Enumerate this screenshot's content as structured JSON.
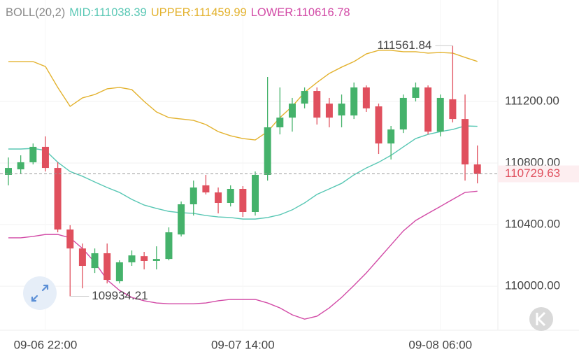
{
  "chart_data": {
    "type": "candlestick",
    "indicator": "BOLL(20,2)",
    "categories": [
      null,
      null,
      null,
      "09-06 22:00",
      null,
      null,
      null,
      null,
      null,
      null,
      null,
      null,
      null,
      null,
      null,
      null,
      null,
      null,
      null,
      "09-07 14:00",
      null,
      null,
      null,
      null,
      null,
      null,
      null,
      null,
      null,
      null,
      null,
      null,
      null,
      null,
      null,
      "09-08 06:00",
      null,
      null,
      null
    ],
    "open": [
      110723,
      110759,
      110805,
      110905,
      110768,
      110368,
      110245,
      110118,
      110214,
      110032,
      110155,
      110195,
      110164,
      110177,
      110336,
      110532,
      110655,
      110609,
      110541,
      110632,
      110482,
      110723,
      111032,
      111095,
      111186,
      111268,
      111186,
      111109,
      111109,
      111291,
      111168,
      110927,
      111018,
      111223,
      111291,
      111004,
      111214,
      111086,
      110791
    ],
    "high": [
      110836,
      110850,
      110927,
      110973,
      110805,
      110396,
      110277,
      110245,
      110277,
      110168,
      110232,
      110223,
      110259,
      110382,
      110550,
      110686,
      110723,
      110641,
      110655,
      110650,
      110745,
      111359,
      111291,
      111223,
      111291,
      111291,
      111223,
      111245,
      111323,
      111304,
      111186,
      111041,
      111245,
      111323,
      111304,
      111245,
      111561.84,
      111245,
      110914
    ],
    "low": [
      110655,
      110732,
      110791,
      110745,
      110350,
      109934.21,
      109986,
      110086,
      110018,
      110018,
      110132,
      110109,
      110109,
      110168,
      110323,
      110459,
      110596,
      110473,
      110518,
      110450,
      110459,
      110686,
      110986,
      111004,
      111155,
      111050,
      111032,
      111032,
      111086,
      111132,
      110859,
      110823,
      110995,
      111200,
      110986,
      110973,
      111064,
      110686,
      110668
    ],
    "close": [
      110768,
      110805,
      110905,
      110768,
      110368,
      110245,
      110132,
      110214,
      110041,
      110155,
      110200,
      110164,
      110177,
      110350,
      110532,
      110641,
      110609,
      110541,
      110632,
      110482,
      110723,
      111032,
      111095,
      111186,
      111268,
      111095,
      111095,
      111186,
      111291,
      111155,
      110927,
      111018,
      111223,
      111291,
      111004,
      111223,
      111086,
      110791,
      110729.63
    ],
    "up_color": "#45b26b",
    "down_color": "#e0505e",
    "series": [
      {
        "name": "MID:",
        "color": "#58c7b4",
        "values": [
          110891,
          110891,
          110895,
          110882,
          110805,
          110745,
          110714,
          110677,
          110641,
          110609,
          110564,
          110527,
          110505,
          110486,
          110477,
          110473,
          110459,
          110450,
          110446,
          110436,
          110436,
          110446,
          110464,
          110496,
          110541,
          110596,
          110632,
          110668,
          110723,
          110768,
          110805,
          110850,
          110905,
          110959,
          110986,
          111004,
          111018,
          111041,
          111038.39
        ]
      },
      {
        "name": "UPPER:",
        "color": "#e3b22e",
        "values": [
          111459,
          111459,
          111459,
          111427,
          111291,
          111168,
          111223,
          111245,
          111282,
          111291,
          111277,
          111200,
          111132,
          111095,
          111086,
          111077,
          111050,
          111004,
          110977,
          110959,
          110950,
          111004,
          111095,
          111168,
          111259,
          111323,
          111382,
          111423,
          111459,
          111509,
          111532,
          111532,
          111523,
          111523,
          111514,
          111518,
          111514,
          111486,
          111459.99
        ]
      },
      {
        "name": "LOWER:",
        "color": "#d24aa6",
        "values": [
          110314,
          110314,
          110323,
          110336,
          110336,
          110314,
          110245,
          110155,
          110041,
          109973,
          109927,
          109905,
          109891,
          109886,
          109886,
          109886,
          109891,
          109905,
          109914,
          109914,
          109914,
          109891,
          109859,
          109814,
          109786,
          109805,
          109859,
          109927,
          110005,
          110086,
          110177,
          110268,
          110359,
          110427,
          110473,
          110518,
          110564,
          110609,
          110616.78
        ]
      }
    ],
    "ylim": [
      109714,
      111859
    ],
    "yticks": [
      {
        "value": 110000,
        "label": "110000.00"
      },
      {
        "value": 110400,
        "label": "110400.00"
      },
      {
        "value": 110800,
        "label": "110800.00"
      },
      {
        "value": 111200,
        "label": "111200.00"
      }
    ],
    "grid": true
  }
}
